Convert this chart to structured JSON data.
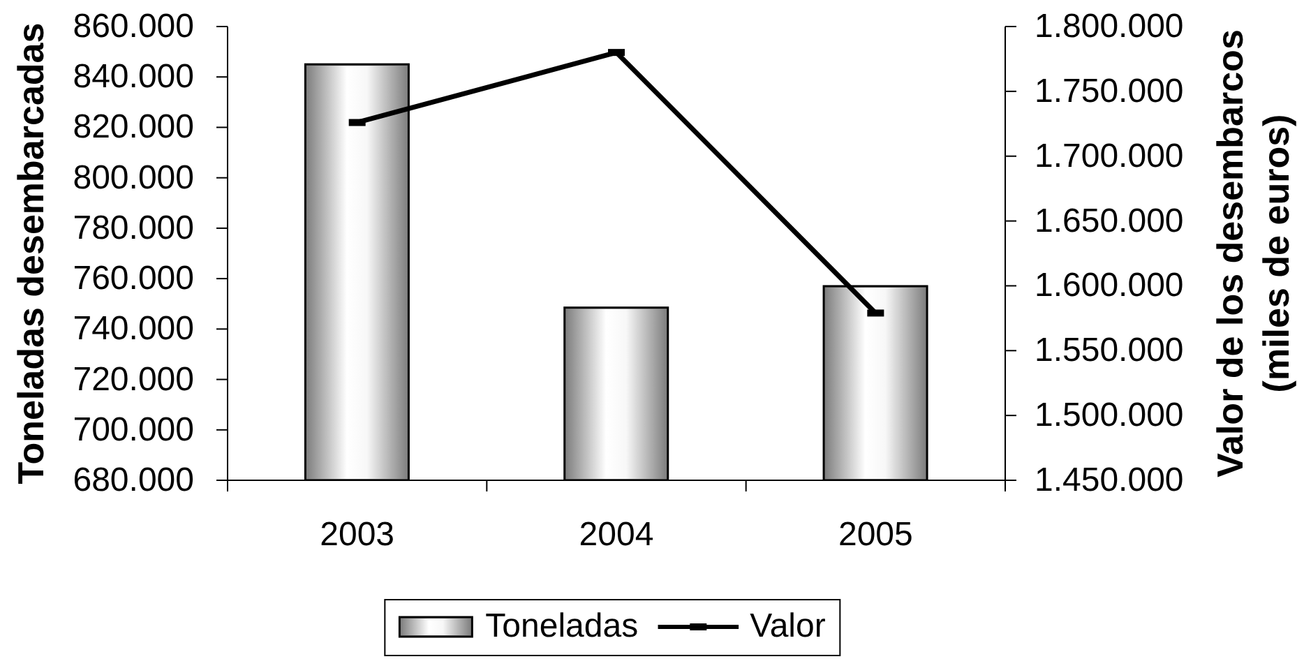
{
  "chart_data": {
    "type": "bar",
    "categories": [
      "2003",
      "2004",
      "2005"
    ],
    "series": [
      {
        "name": "Toneladas",
        "color": "#808080",
        "values": [
          845000,
          748500,
          757000
        ]
      },
      {
        "name": "Valor",
        "type": "line",
        "axis": "y2",
        "color": "#000000",
        "values": [
          1726000,
          1780000,
          1579000
        ]
      }
    ],
    "ylabel": "Toneladas desembarcadas",
    "y2label": "Valor de los desembarcos\n(miles de euros)",
    "ylim": [
      680000,
      860000
    ],
    "yticks": [
      {
        "value": 680000,
        "label": "680.000"
      },
      {
        "value": 700000,
        "label": "700.000"
      },
      {
        "value": 720000,
        "label": "720.000"
      },
      {
        "value": 740000,
        "label": "740.000"
      },
      {
        "value": 760000,
        "label": "760.000"
      },
      {
        "value": 780000,
        "label": "780.000"
      },
      {
        "value": 800000,
        "label": "800.000"
      },
      {
        "value": 820000,
        "label": "820.000"
      },
      {
        "value": 840000,
        "label": "840.000"
      },
      {
        "value": 860000,
        "label": "860.000"
      }
    ],
    "y2lim": [
      1450000,
      1800000
    ],
    "y2ticks": [
      {
        "value": 1450000,
        "label": "1.450.000"
      },
      {
        "value": 1500000,
        "label": "1.500.000"
      },
      {
        "value": 1550000,
        "label": "1.550.000"
      },
      {
        "value": 1600000,
        "label": "1.600.000"
      },
      {
        "value": 1650000,
        "label": "1.650.000"
      },
      {
        "value": 1700000,
        "label": "1.700.000"
      },
      {
        "value": 1750000,
        "label": "1.750.000"
      },
      {
        "value": 1800000,
        "label": "1.800.000"
      }
    ],
    "legend": "bottom",
    "marker": "square"
  }
}
